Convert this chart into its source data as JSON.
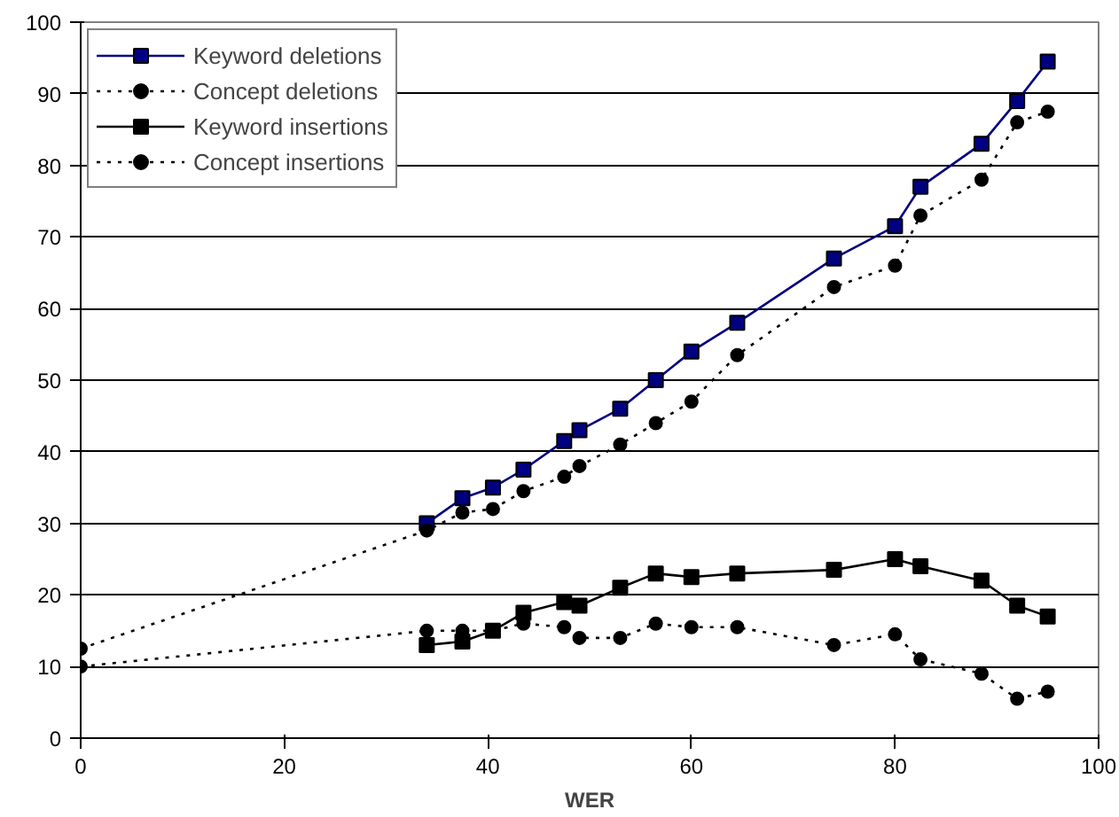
{
  "chart_data": {
    "type": "line",
    "xlabel": "WER",
    "xlim": [
      0,
      100
    ],
    "xticks": [
      0,
      20,
      40,
      60,
      80,
      100
    ],
    "ylim": [
      0,
      100
    ],
    "yticks": [
      0,
      10,
      20,
      30,
      40,
      50,
      60,
      70,
      80,
      90,
      100
    ],
    "grid": "y",
    "legend": "top left",
    "series": [
      {
        "name": "Keyword deletions",
        "color": "#000080",
        "marker": "square",
        "line_style": "solid",
        "x": [
          34,
          37.5,
          40.5,
          43.5,
          47.5,
          49,
          53,
          56.5,
          60,
          64.5,
          74,
          80,
          82.5,
          88.5,
          92,
          95
        ],
        "values": [
          30,
          33.5,
          35,
          37.5,
          41.5,
          43,
          46,
          50,
          54,
          58,
          67,
          71.5,
          77,
          83,
          89,
          94.5
        ]
      },
      {
        "name": "Concept deletions",
        "color": "#000000",
        "marker": "circle",
        "line_style": "dotted",
        "x": [
          0,
          34,
          37.5,
          40.5,
          43.5,
          47.5,
          49,
          53,
          56.5,
          60,
          64.5,
          74,
          80,
          82.5,
          88.5,
          92,
          95
        ],
        "values": [
          12.5,
          29,
          31.5,
          32,
          34.5,
          36.5,
          38,
          41,
          44,
          47,
          53.5,
          63,
          66,
          73,
          78,
          86,
          87.5
        ]
      },
      {
        "name": "Keyword insertions",
        "color": "#000000",
        "marker": "square",
        "line_style": "solid",
        "x": [
          34,
          37.5,
          40.5,
          43.5,
          47.5,
          49,
          53,
          56.5,
          60,
          64.5,
          74,
          80,
          82.5,
          88.5,
          92,
          95
        ],
        "values": [
          13,
          13.5,
          15,
          17.5,
          19,
          18.5,
          21,
          23,
          22.5,
          23,
          23.5,
          25,
          24,
          22,
          18.5,
          17
        ]
      },
      {
        "name": "Concept insertions",
        "color": "#000000",
        "marker": "circle",
        "line_style": "dotted",
        "x": [
          0,
          34,
          37.5,
          40.5,
          43.5,
          47.5,
          49,
          53,
          56.5,
          60,
          64.5,
          74,
          80,
          82.5,
          88.5,
          92,
          95
        ],
        "values": [
          10,
          15,
          15,
          15,
          16,
          15.5,
          14,
          14,
          16,
          15.5,
          15.5,
          13,
          14.5,
          11,
          9,
          5.5,
          6.5
        ]
      }
    ]
  }
}
